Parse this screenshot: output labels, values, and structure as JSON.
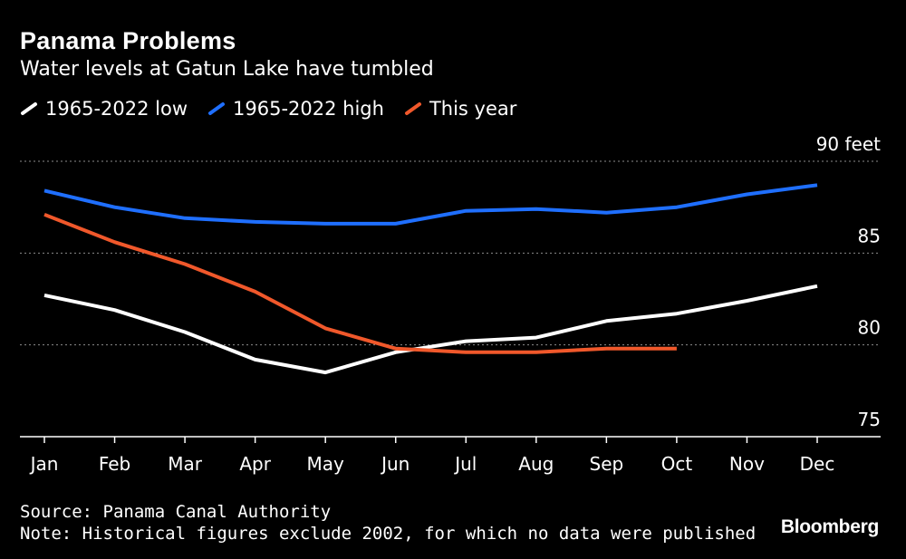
{
  "chart_data": {
    "type": "line",
    "title": "Panama Problems",
    "subtitle": "Water levels at Gatun Lake have tumbled",
    "categories": [
      "Jan",
      "Feb",
      "Mar",
      "Apr",
      "May",
      "Jun",
      "Jul",
      "Aug",
      "Sep",
      "Oct",
      "Nov",
      "Dec"
    ],
    "series": [
      {
        "name": "1965-2022 low",
        "color": "#ffffff",
        "values": [
          82.7,
          81.9,
          80.7,
          79.2,
          78.5,
          79.6,
          80.2,
          80.4,
          81.3,
          81.7,
          82.4,
          83.2
        ]
      },
      {
        "name": "1965-2022 high",
        "color": "#1f6fff",
        "values": [
          88.4,
          87.5,
          86.9,
          86.7,
          86.6,
          86.6,
          87.3,
          87.4,
          87.2,
          87.5,
          88.2,
          88.7
        ]
      },
      {
        "name": "This year",
        "color": "#f0582b",
        "values": [
          87.1,
          85.6,
          84.4,
          82.9,
          80.9,
          79.8,
          79.6,
          79.6,
          79.8,
          79.8,
          null,
          null
        ]
      }
    ],
    "y_ticks": [
      {
        "value": 90,
        "label": "90",
        "unit": "feet"
      },
      {
        "value": 85,
        "label": "85"
      },
      {
        "value": 80,
        "label": "80"
      },
      {
        "value": 75,
        "label": "75"
      }
    ],
    "ylim": [
      75,
      90
    ],
    "xlabel": "",
    "ylabel": "feet",
    "grid": true
  },
  "footer": {
    "source": "Source: Panama Canal Authority",
    "note": "Note: Historical figures exclude 2002, for which no data were published"
  },
  "brand": "Bloomberg"
}
